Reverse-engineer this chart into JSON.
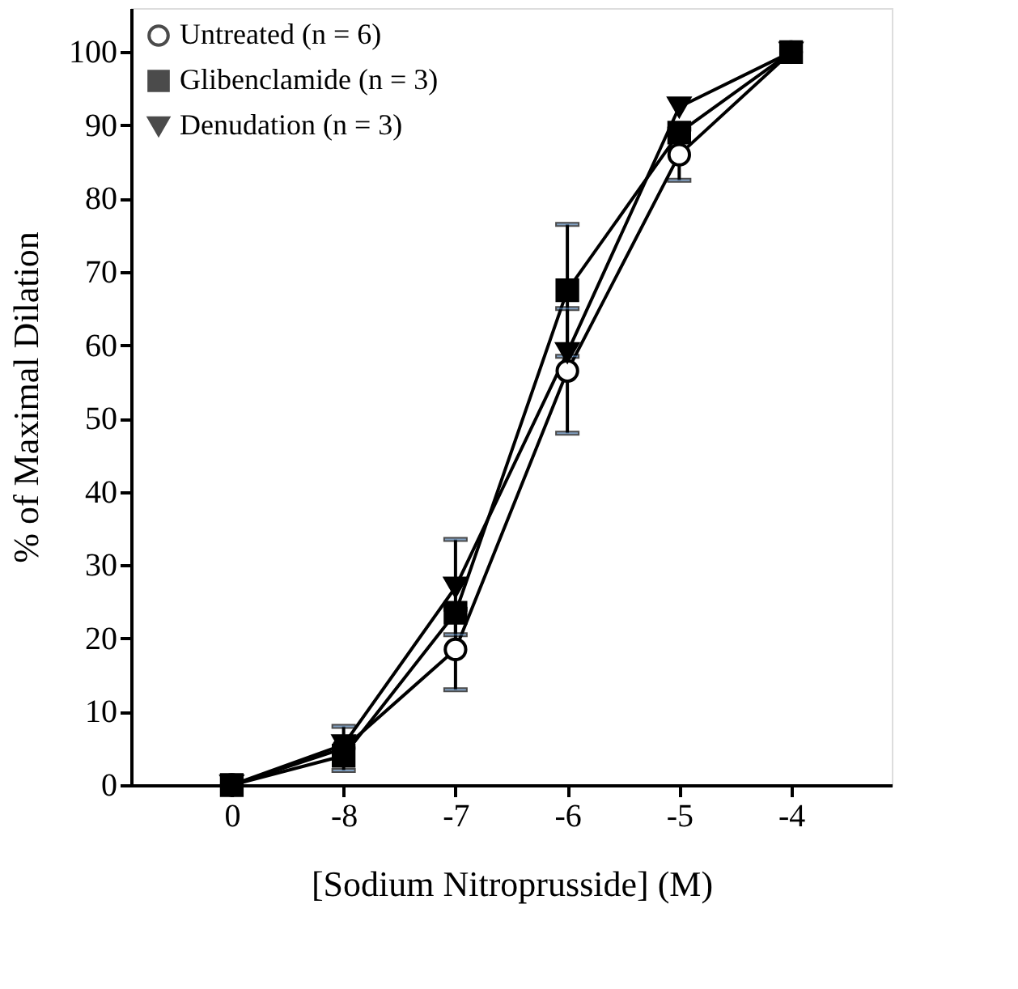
{
  "chart_data": {
    "type": "line",
    "xlabel": "[Sodium Nitroprusside] (M)",
    "ylabel": "% of Maximal Dilation",
    "categories": [
      "0",
      "-8",
      "-7",
      "-6",
      "-5",
      "-4"
    ],
    "series": [
      {
        "name": "Untreated (n = 6)",
        "color": "#000000",
        "marker": "circle",
        "values": [
          0,
          5,
          18.5,
          56.5,
          86,
          100
        ],
        "errors": [
          null,
          3,
          5.5,
          8.5,
          3.5,
          null
        ]
      },
      {
        "name": "Glibenclamide (n = 3)",
        "color": "#000000",
        "marker": "square",
        "values": [
          0,
          4,
          23.5,
          67.5,
          89,
          100
        ],
        "errors": [
          null,
          null,
          null,
          9,
          null,
          null
        ]
      },
      {
        "name": "Denudation (n = 3)",
        "color": "#000000",
        "marker": "triangle",
        "values": [
          0,
          5.5,
          27,
          59,
          92.5,
          100
        ],
        "errors": [
          null,
          null,
          6.5,
          null,
          null,
          null
        ]
      }
    ],
    "ylim": [
      0,
      106
    ],
    "yticks": [
      0,
      10,
      20,
      30,
      40,
      50,
      60,
      70,
      80,
      90,
      100
    ],
    "grid": false,
    "legend": "top left",
    "line_style": "solid"
  }
}
